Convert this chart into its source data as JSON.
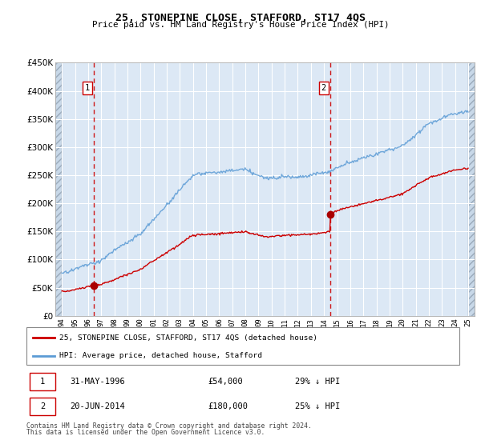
{
  "title": "25, STONEPINE CLOSE, STAFFORD, ST17 4QS",
  "subtitle": "Price paid vs. HM Land Registry's House Price Index (HPI)",
  "legend_line1": "25, STONEPINE CLOSE, STAFFORD, ST17 4QS (detached house)",
  "legend_line2": "HPI: Average price, detached house, Stafford",
  "footnote1": "Contains HM Land Registry data © Crown copyright and database right 2024.",
  "footnote2": "This data is licensed under the Open Government Licence v3.0.",
  "purchase1_date": 1996.42,
  "purchase1_price": 54000,
  "purchase2_date": 2014.47,
  "purchase2_price": 180000,
  "hpi_color": "#5b9bd5",
  "price_color": "#cc0000",
  "marker_color": "#aa0000",
  "vline_color": "#cc0000",
  "ylim": [
    0,
    450000
  ],
  "xlim_left": 1993.5,
  "xlim_right": 2025.5,
  "hatch_right_start": 2025.0,
  "background_plot": "#dce8f5",
  "background_hatch": "#c8d8e8",
  "grid_color": "#ffffff"
}
